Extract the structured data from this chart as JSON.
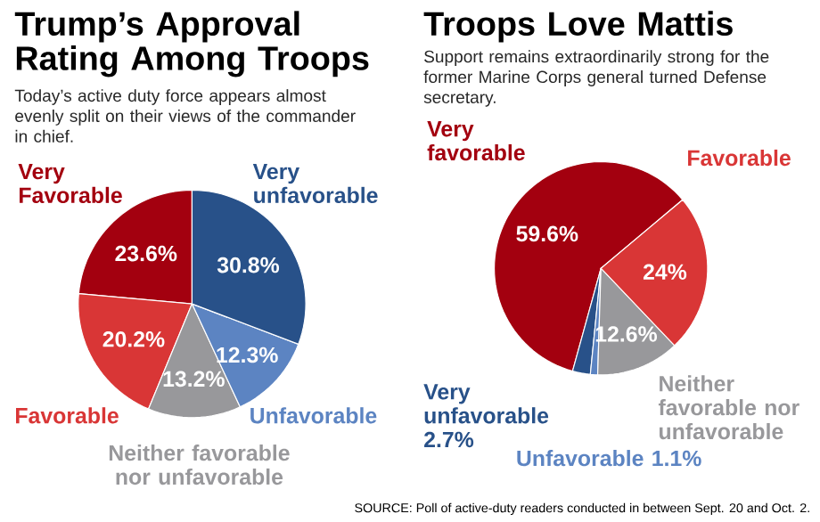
{
  "chart_data": [
    {
      "type": "pie",
      "title": "Trump’s Approval Rating Among Troops",
      "subtitle": "Today’s active duty force appears almost evenly split on their views of the commander in chief.",
      "categories": [
        "Very Favorable",
        "Favorable",
        "Neither favorable nor unfavorable",
        "Unfavorable",
        "Very unfavorable"
      ],
      "values": [
        23.6,
        20.2,
        13.2,
        12.3,
        30.8
      ],
      "colors": [
        "#a3000f",
        "#d93636",
        "#98989b",
        "#5c84c2",
        "#285189"
      ],
      "value_labels": [
        "23.6%",
        "20.2%",
        "13.2%",
        "12.3%",
        "30.8%"
      ]
    },
    {
      "type": "pie",
      "title": "Troops Love Mattis",
      "subtitle": "Support remains extraordinarily strong for the former Marine Corps general turned Defense secretary.",
      "categories": [
        "Very favorable",
        "Very unfavorable",
        "Unfavorable",
        "Neither favorable nor unfavorable",
        "Favorable"
      ],
      "values": [
        59.6,
        2.7,
        1.1,
        12.6,
        24
      ],
      "colors": [
        "#a3000f",
        "#285189",
        "#5c84c2",
        "#98989b",
        "#d93636"
      ],
      "value_labels": [
        "59.6%",
        "2.7%",
        "1.1%",
        "12.6%",
        "24%"
      ],
      "annotations": [
        "SOURCE: Poll of active-duty readers conducted in between Sept. 20 and Oct. 2."
      ]
    }
  ]
}
